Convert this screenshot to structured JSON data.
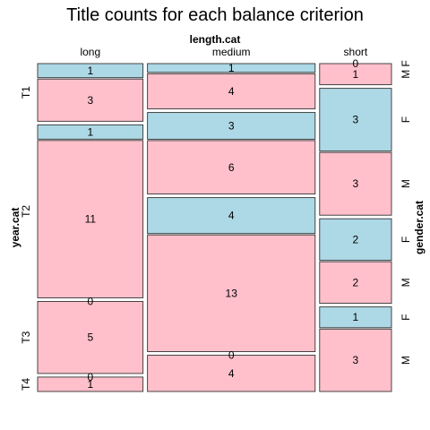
{
  "chart_data": {
    "type": "mosaic",
    "title": "Title counts for each balance criterion",
    "variables": {
      "columns": {
        "name": "length.cat",
        "levels": [
          "long",
          "medium",
          "short"
        ]
      },
      "rows": {
        "name": "year.cat",
        "levels": [
          "T1",
          "T2",
          "T3",
          "T4"
        ]
      },
      "fill": {
        "name": "gender.cat",
        "levels": [
          "F",
          "M"
        ]
      }
    },
    "fill_colors": {
      "F": "#add8e6",
      "M": "#ffc0cb"
    },
    "counts": {
      "long": {
        "T1": {
          "F": 1,
          "M": 3
        },
        "T2": {
          "F": 1,
          "M": 11
        },
        "T3": {
          "F": 0,
          "M": 5
        },
        "T4": {
          "F": 0,
          "M": 1
        }
      },
      "medium": {
        "T1": {
          "F": 1,
          "M": 4
        },
        "T2": {
          "F": 3,
          "M": 6
        },
        "T3": {
          "F": 4,
          "M": 13
        },
        "T4": {
          "F": 0,
          "M": 4
        }
      },
      "short": {
        "T1": {
          "F": 0,
          "M": 1
        },
        "T2": {
          "F": 3,
          "M": 3
        },
        "T3": {
          "F": 2,
          "M": 2
        },
        "T4": {
          "F": 1,
          "M": 3
        }
      }
    }
  }
}
